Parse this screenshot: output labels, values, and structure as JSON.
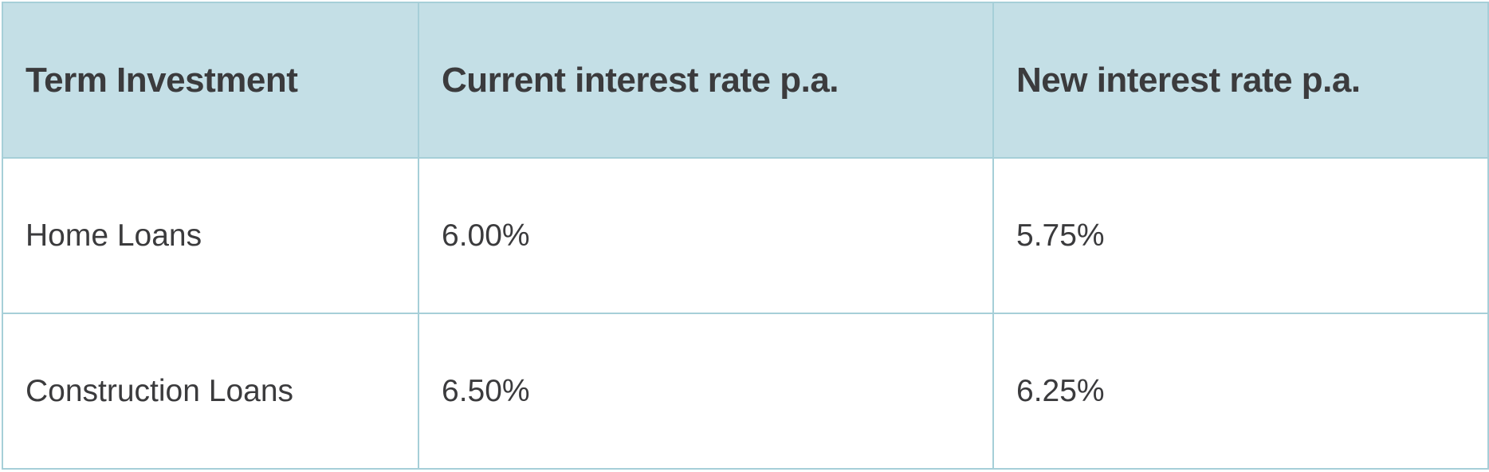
{
  "table": {
    "headers": [
      "Term Investment",
      "Current interest rate p.a.",
      "New interest rate p.a."
    ],
    "rows": [
      [
        "Home Loans",
        "6.00%",
        "5.75%"
      ],
      [
        "Construction Loans",
        "6.50%",
        "6.25%"
      ]
    ]
  },
  "colors": {
    "header_bg": "#c4dfe6",
    "border": "#a6cfd8",
    "text": "#3b3b3d"
  }
}
